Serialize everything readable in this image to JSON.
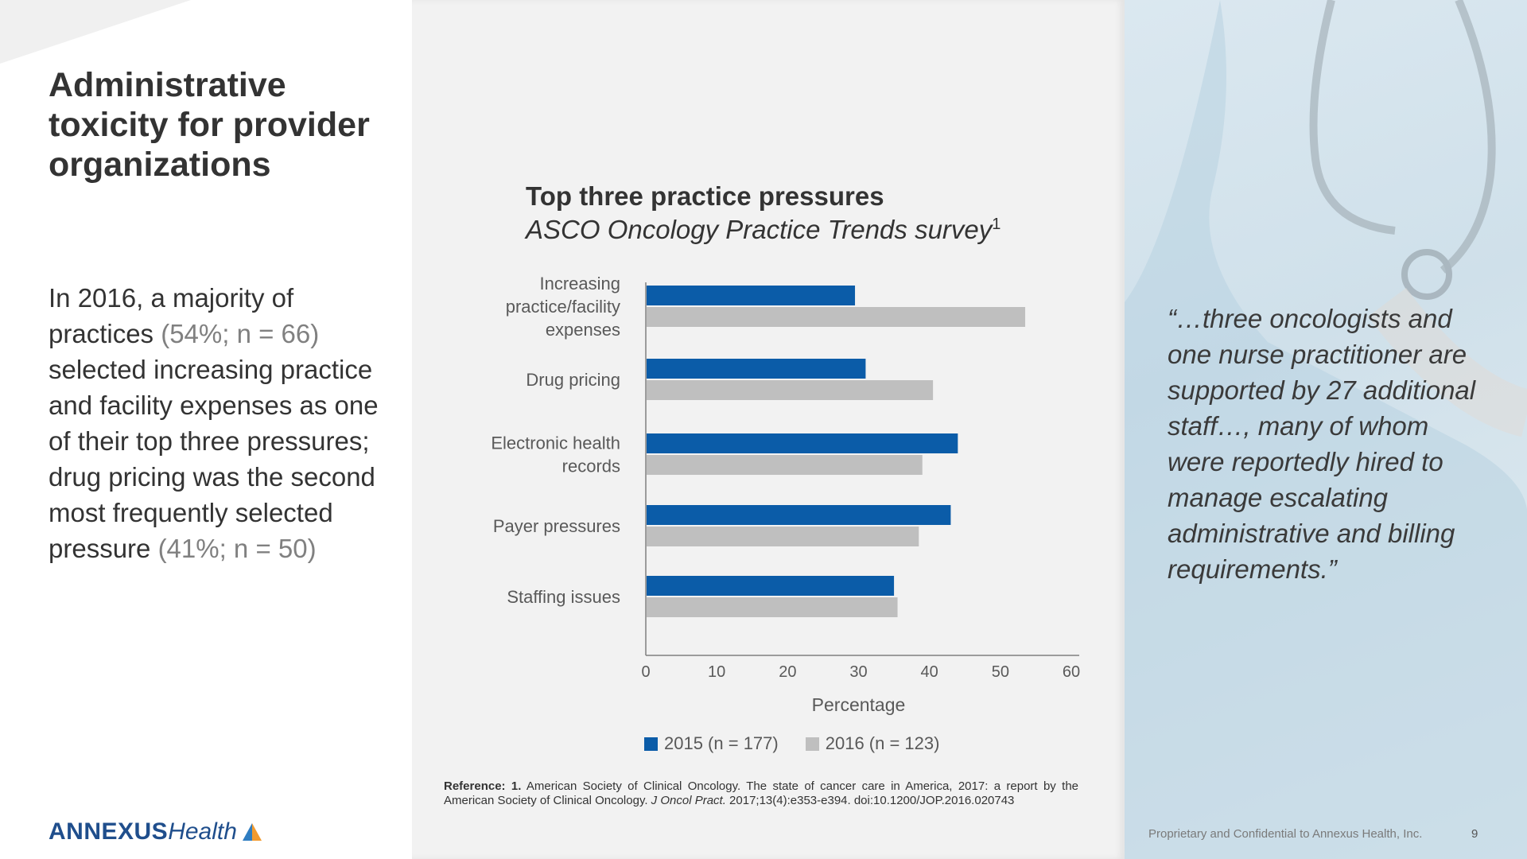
{
  "slide": {
    "title": "Administrative toxicity for provider organizations",
    "body_parts": [
      "In 2016, a majority of practices ",
      "(54%; n = 66)",
      " selected increasing practice and facility expenses as one of their top three pressures; drug pricing was the second most frequently selected pressure ",
      "(41%; n = 50)"
    ],
    "logo_strong": "ANNEXUS",
    "logo_light": "Health",
    "quote": "“…three oncologists and one nurse practitioner are supported by 27 additional staff…, many of whom were reportedly hired to manage escalating administrative and billing requirements.”",
    "footer": "Proprietary and Confidential to Annexus Health, Inc.",
    "page_number": "9",
    "reference": {
      "label": "Reference: 1.",
      "text1": " American Society of Clinical Oncology. The state of cancer care in America, 2017: a report by the American Society of Clinical Oncology. ",
      "journal": "J Oncol Pract.",
      "text2": " 2017;13(4):e353-e394. doi:10.1200/JOP.2016.020743"
    }
  },
  "chart_data": {
    "type": "bar",
    "orientation": "horizontal",
    "title": "Top three practice pressures",
    "subtitle": "ASCO Oncology Practice Trends survey",
    "subtitle_sup": "1",
    "categories": [
      "Increasing practice/facility expenses",
      "Drug pricing",
      "Electronic health records",
      "Payer pressures",
      "Staffing issues"
    ],
    "category_lines": [
      [
        "Increasing",
        "practice/facility",
        "expenses"
      ],
      [
        "Drug pricing"
      ],
      [
        "Electronic health",
        "records"
      ],
      [
        "Payer pressures"
      ],
      [
        "Staffing issues"
      ]
    ],
    "series": [
      {
        "name": "2015 (n = 177)",
        "color": "#0b5ca8",
        "values": [
          29.5,
          31,
          44,
          43,
          35
        ]
      },
      {
        "name": "2016 (n = 123)",
        "color": "#bfbfbf",
        "values": [
          53.5,
          40.5,
          39,
          38.5,
          35.5
        ]
      }
    ],
    "xlabel": "Percentage",
    "xlim": [
      0,
      60
    ],
    "xticks": [
      0,
      10,
      20,
      30,
      40,
      50,
      60
    ],
    "legend_position": "bottom",
    "grid": false
  }
}
